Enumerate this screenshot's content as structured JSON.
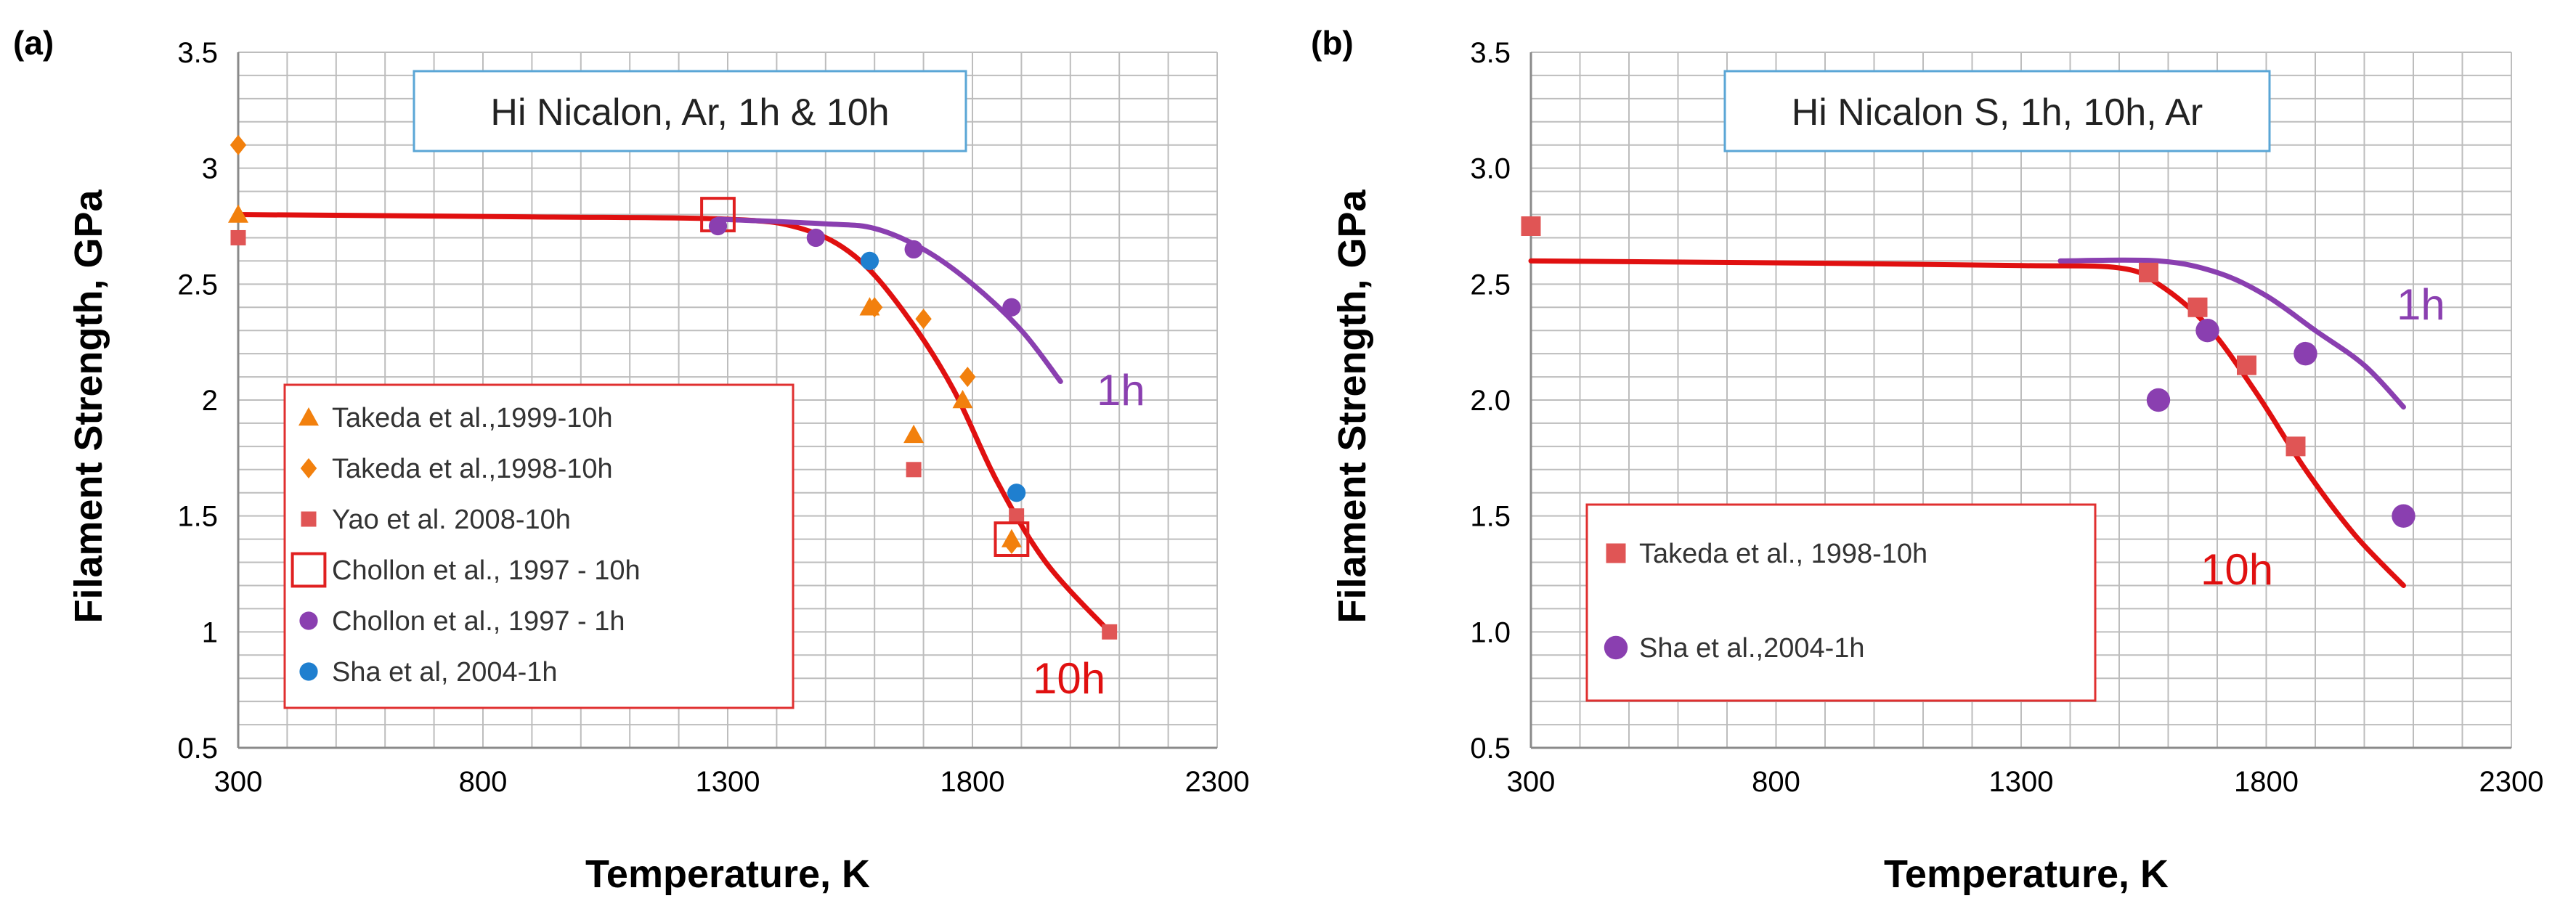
{
  "chart_data": [
    {
      "type": "scatter",
      "panel_label": "(a)",
      "title": "Hi Nicalon, Ar, 1h  & 10h",
      "xlabel": "Temperature, K",
      "ylabel": "Filament Strength, GPa",
      "xlim": [
        300,
        2300
      ],
      "ylim": [
        0.5,
        3.5
      ],
      "xticks": [
        300,
        800,
        1300,
        1800,
        2300
      ],
      "yticks": [
        0.5,
        1,
        1.5,
        2,
        2.5,
        3,
        3.5
      ],
      "ytick_labels": [
        "0.5",
        "1",
        "1.5",
        "2",
        "2.5",
        "3",
        "3.5"
      ],
      "grid": true,
      "legend_position": "lower-left",
      "series": [
        {
          "name": "Takeda et al.,1999-10h",
          "marker": "triangle",
          "color": "#f2800d",
          "points": [
            [
              300,
              2.8
            ],
            [
              1590,
              2.4
            ],
            [
              1680,
              1.85
            ],
            [
              1780,
              2.0
            ],
            [
              1880,
              1.4
            ]
          ]
        },
        {
          "name": "Takeda et al.,1998-10h",
          "marker": "diamond",
          "color": "#f2800d",
          "points": [
            [
              300,
              3.1
            ],
            [
              1600,
              2.4
            ],
            [
              1700,
              2.35
            ],
            [
              1790,
              2.1
            ],
            [
              1880,
              1.38
            ]
          ]
        },
        {
          "name": "Yao et al. 2008-10h",
          "marker": "square",
          "color": "#e05555",
          "points": [
            [
              300,
              2.7
            ],
            [
              1680,
              1.7
            ],
            [
              1890,
              1.5
            ],
            [
              2080,
              1.0
            ]
          ]
        },
        {
          "name": "Chollon et al., 1997 - 10h",
          "marker": "open-square",
          "color": "#e02020",
          "points": [
            [
              1280,
              2.8
            ],
            [
              1880,
              1.4
            ]
          ]
        },
        {
          "name": "Chollon et al., 1997 - 1h",
          "marker": "circle",
          "color": "#8a3fb0",
          "points": [
            [
              1280,
              2.75
            ],
            [
              1480,
              2.7
            ],
            [
              1680,
              2.65
            ],
            [
              1880,
              2.4
            ]
          ]
        },
        {
          "name": "Sha et al, 2004-1h",
          "marker": "circle",
          "color": "#1f7fcf",
          "points": [
            [
              1590,
              2.6
            ],
            [
              1890,
              1.6
            ]
          ]
        }
      ],
      "curves": [
        {
          "name": "10h",
          "color": "#e01010",
          "points": [
            [
              300,
              2.8
            ],
            [
              900,
              2.79
            ],
            [
              1300,
              2.78
            ],
            [
              1450,
              2.74
            ],
            [
              1560,
              2.62
            ],
            [
              1660,
              2.38
            ],
            [
              1760,
              2.05
            ],
            [
              1850,
              1.65
            ],
            [
              1950,
              1.3
            ],
            [
              2080,
              1.0
            ]
          ]
        },
        {
          "name": "1h",
          "color": "#8a3fb0",
          "points": [
            [
              1280,
              2.78
            ],
            [
              1500,
              2.76
            ],
            [
              1600,
              2.74
            ],
            [
              1700,
              2.65
            ],
            [
              1800,
              2.5
            ],
            [
              1900,
              2.3
            ],
            [
              1980,
              2.08
            ]
          ]
        }
      ],
      "annotations": [
        {
          "text": "1h",
          "x": 2020,
          "y": 2.05,
          "color": "#8a3fb0"
        },
        {
          "text": "10h",
          "x": 1870,
          "y": 0.8,
          "color": "#e01010"
        }
      ]
    },
    {
      "type": "scatter",
      "panel_label": "(b)",
      "title": "Hi Nicalon S, 1h, 10h, Ar",
      "xlabel": "Temperature, K",
      "ylabel": "Filament Strength, GPa",
      "xlim": [
        300,
        2300
      ],
      "ylim": [
        0.5,
        3.5
      ],
      "xticks": [
        300,
        800,
        1300,
        1800,
        2300
      ],
      "yticks": [
        0.5,
        1.0,
        1.5,
        2.0,
        2.5,
        3.0,
        3.5
      ],
      "ytick_labels": [
        "0.5",
        "1.0",
        "1.5",
        "2.0",
        "2.5",
        "3.0",
        "3.5"
      ],
      "grid": true,
      "legend_position": "lower-left",
      "series": [
        {
          "name": "Takeda et al., 1998-10h",
          "marker": "square",
          "color": "#e05555",
          "points": [
            [
              300,
              2.75
            ],
            [
              1560,
              2.55
            ],
            [
              1660,
              2.4
            ],
            [
              1760,
              2.15
            ],
            [
              1860,
              1.8
            ]
          ]
        },
        {
          "name": "Sha et al.,2004-1h",
          "marker": "circle",
          "color": "#8a3fb0",
          "points": [
            [
              1580,
              2.0
            ],
            [
              1680,
              2.3
            ],
            [
              1880,
              2.2
            ],
            [
              2080,
              1.5
            ]
          ]
        }
      ],
      "curves": [
        {
          "name": "10h",
          "color": "#e01010",
          "points": [
            [
              300,
              2.6
            ],
            [
              900,
              2.59
            ],
            [
              1300,
              2.58
            ],
            [
              1500,
              2.57
            ],
            [
              1580,
              2.5
            ],
            [
              1680,
              2.32
            ],
            [
              1780,
              2.03
            ],
            [
              1880,
              1.7
            ],
            [
              1980,
              1.42
            ],
            [
              2080,
              1.2
            ]
          ]
        },
        {
          "name": "1h",
          "color": "#8a3fb0",
          "points": [
            [
              1380,
              2.6
            ],
            [
              1580,
              2.6
            ],
            [
              1700,
              2.55
            ],
            [
              1800,
              2.45
            ],
            [
              1900,
              2.3
            ],
            [
              2000,
              2.15
            ],
            [
              2080,
              1.97
            ]
          ]
        }
      ],
      "annotations": [
        {
          "text": "1h",
          "x": 2060,
          "y": 2.35,
          "color": "#8a3fb0"
        },
        {
          "text": "10h",
          "x": 1700,
          "y": 1.18,
          "color": "#e01010"
        }
      ]
    }
  ]
}
